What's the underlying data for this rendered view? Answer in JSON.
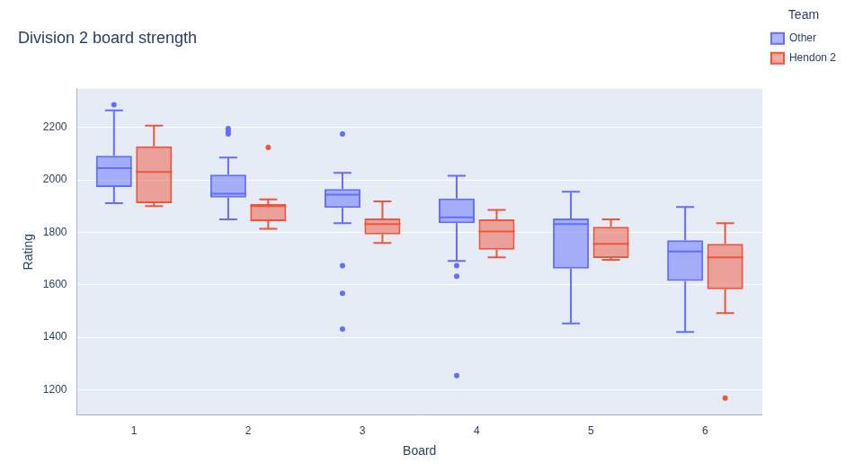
{
  "chart_data": {
    "type": "box",
    "title": "Division 2 board strength",
    "x_label": "Board",
    "y_label": "Rating",
    "categories": [
      "1",
      "2",
      "3",
      "4",
      "5",
      "6"
    ],
    "ylim": [
      1103,
      2348
    ],
    "yticks": [
      1200,
      1400,
      1600,
      1800,
      2000,
      2200
    ],
    "grid": true,
    "legend": "right",
    "legend_title": "Team",
    "series": [
      {
        "name": "Other",
        "color": "#636efa",
        "boxes": [
          {
            "low": 1911,
            "q1": 1973,
            "median": 2045,
            "q3": 2092,
            "high": 2265,
            "outliers": [
              2287
            ]
          },
          {
            "low": 1850,
            "q1": 1933,
            "median": 1947,
            "q3": 2020,
            "high": 2085,
            "outliers": [
              2196,
              2185,
              2175
            ]
          },
          {
            "low": 1835,
            "q1": 1893,
            "median": 1944,
            "q3": 1965,
            "high": 2027,
            "outliers": [
              2175,
              1673,
              1568,
              1431
            ]
          },
          {
            "low": 1691,
            "q1": 1835,
            "median": 1857,
            "q3": 1929,
            "high": 2016,
            "outliers": [
              1673,
              1633,
              1254
            ]
          },
          {
            "low": 1453,
            "q1": 1662,
            "median": 1832,
            "q3": 1853,
            "high": 1955,
            "outliers": []
          },
          {
            "low": 1420,
            "q1": 1615,
            "median": 1727,
            "q3": 1770,
            "high": 1897,
            "outliers": []
          }
        ]
      },
      {
        "name": "Hendon 2",
        "color": "#ef553b",
        "boxes": [
          {
            "low": 1900,
            "q1": 1911,
            "median": 2030,
            "q3": 2128,
            "high": 2207,
            "outliers": []
          },
          {
            "low": 1814,
            "q1": 1843,
            "median": 1900,
            "q3": 1908,
            "high": 1926,
            "outliers": [
              2124
            ]
          },
          {
            "low": 1760,
            "q1": 1792,
            "median": 1832,
            "q3": 1853,
            "high": 1918,
            "outliers": []
          },
          {
            "low": 1705,
            "q1": 1734,
            "median": 1803,
            "q3": 1850,
            "high": 1886,
            "outliers": []
          },
          {
            "low": 1695,
            "q1": 1702,
            "median": 1756,
            "q3": 1821,
            "high": 1850,
            "outliers": []
          },
          {
            "low": 1492,
            "q1": 1583,
            "median": 1705,
            "q3": 1756,
            "high": 1835,
            "outliers": [
              1168
            ]
          }
        ]
      }
    ]
  }
}
